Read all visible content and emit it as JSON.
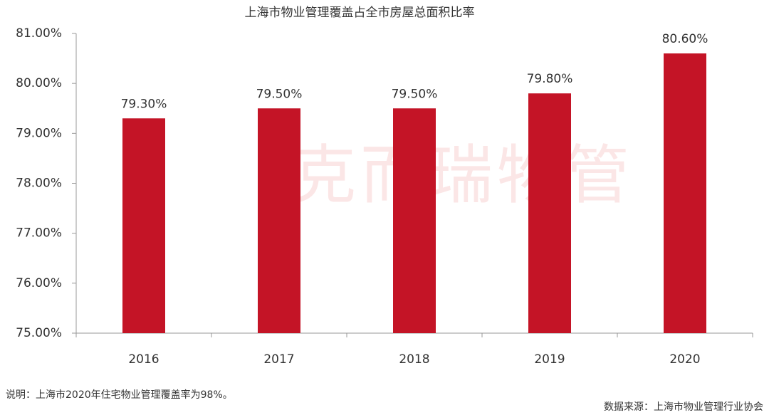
{
  "chart_data": {
    "type": "bar",
    "title": "上海市物业管理覆盖占全市房屋总面积比率",
    "categories": [
      "2016",
      "2017",
      "2018",
      "2019",
      "2020"
    ],
    "values": [
      79.3,
      79.5,
      79.5,
      79.8,
      80.6
    ],
    "value_labels": [
      "79.30%",
      "79.50%",
      "79.50%",
      "79.80%",
      "80.60%"
    ],
    "color": "#c41426",
    "ylim": [
      75,
      81
    ],
    "yticks": [
      {
        "value": 75,
        "label": "75.00%"
      },
      {
        "value": 76,
        "label": "76.00%"
      },
      {
        "value": 77,
        "label": "77.00%"
      },
      {
        "value": 78,
        "label": "78.00%"
      },
      {
        "value": 79,
        "label": "79.00%"
      },
      {
        "value": 80,
        "label": "80.00%"
      },
      {
        "value": 81,
        "label": "81.00%"
      }
    ],
    "grid": false,
    "watermark": "克而瑞物管",
    "note": "说明：上海市2020年住宅物业管理覆盖率为98%。",
    "source": "数据来源：上海市物业管理行业协会"
  }
}
